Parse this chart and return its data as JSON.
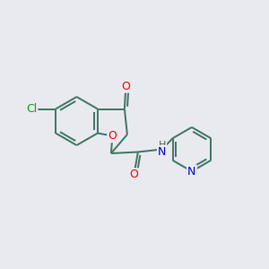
{
  "background_color": "#e8eaf0",
  "bond_color": "#4a7a6a",
  "bond_width": 1.5,
  "atom_colors": {
    "O": "#ff0000",
    "N": "#0000cc",
    "Cl": "#00aa00",
    "C": "#000000"
  },
  "font_size": 9
}
